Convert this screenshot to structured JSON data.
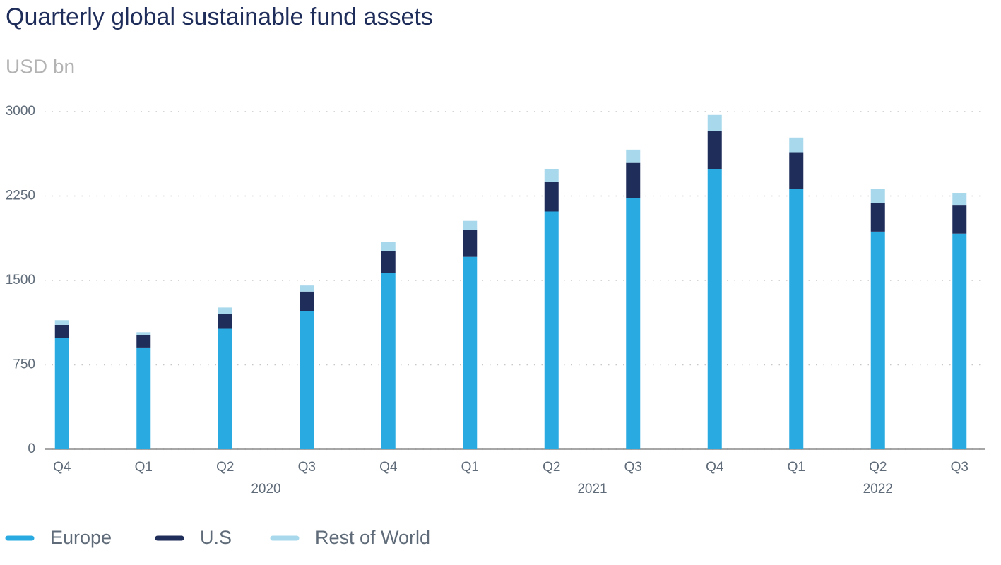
{
  "chart_data": {
    "type": "stacked_bar",
    "title": "Quarterly global sustainable fund assets",
    "subtitle": "USD bn",
    "categories": [
      "Q4",
      "Q1",
      "Q2",
      "Q3",
      "Q4",
      "Q1",
      "Q2",
      "Q3",
      "Q4",
      "Q1",
      "Q2",
      "Q3"
    ],
    "groups": [
      {
        "label": "2020",
        "start": 1,
        "end": 4
      },
      {
        "label": "2021",
        "start": 5,
        "end": 8
      },
      {
        "label": "2022",
        "start": 9,
        "end": 11
      }
    ],
    "series": [
      {
        "name": "Europe",
        "color": "#29abe2",
        "values": [
          987,
          898,
          1070,
          1224,
          1567,
          1709,
          2112,
          2230,
          2491,
          2313,
          1934,
          1916
        ]
      },
      {
        "name": "U.S",
        "color": "#1f2d5a",
        "values": [
          118,
          113,
          130,
          177,
          195,
          237,
          266,
          314,
          337,
          326,
          255,
          255
        ]
      },
      {
        "name": "Rest of World",
        "color": "#a8d8ec",
        "values": [
          42,
          29,
          59,
          54,
          83,
          83,
          113,
          118,
          142,
          130,
          124,
          107
        ]
      }
    ],
    "ylim": [
      0,
      3000
    ],
    "yticks": [
      0,
      750,
      1500,
      2250,
      3000
    ],
    "grid": true,
    "legend": "bottom-left"
  }
}
